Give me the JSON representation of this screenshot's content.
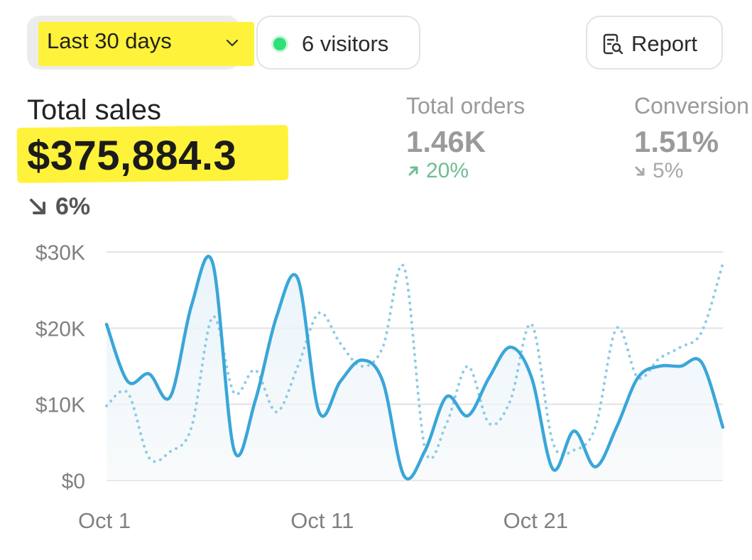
{
  "filters": {
    "range_label": "Last 30 days",
    "visitors_label": "6 visitors",
    "report_label": "Report"
  },
  "metrics": {
    "total_sales": {
      "label": "Total sales",
      "value": "$375,884.3",
      "change": "6%",
      "direction": "down"
    },
    "total_orders": {
      "label": "Total orders",
      "value": "1.46K",
      "change": "20%",
      "direction": "up"
    },
    "conversion": {
      "label": "Conversion",
      "value": "1.51%",
      "change": "5%",
      "direction": "down"
    }
  },
  "colors": {
    "primary_line": "#3aa6d8",
    "comparison_line": "#8ccbe6",
    "highlight": "#fff23a",
    "status_dot": "#2ee07a",
    "up_change": "#6fbc92"
  },
  "chart_data": {
    "type": "line",
    "ylim": [
      0,
      30000
    ],
    "yticks": [
      0,
      10000,
      20000,
      30000
    ],
    "ytick_labels": [
      "$0",
      "$10K",
      "$20K",
      "$30K"
    ],
    "xtick_labels": [
      "Oct 1",
      "Oct 11",
      "Oct 21"
    ],
    "xtick_positions": [
      1,
      11,
      21
    ],
    "x": [
      1,
      2,
      3,
      4,
      5,
      6,
      7,
      8,
      9,
      10,
      11,
      12,
      13,
      14,
      15,
      16,
      17,
      18,
      19,
      20,
      21,
      22,
      23,
      24,
      25,
      26,
      27,
      28,
      29,
      30
    ],
    "grid": true,
    "series": [
      {
        "style": "solid",
        "values": [
          20500,
          13000,
          14000,
          11000,
          23000,
          28500,
          4000,
          10500,
          21500,
          26500,
          9000,
          13000,
          15800,
          13000,
          600,
          4000,
          11000,
          8500,
          13500,
          17500,
          13500,
          1500,
          6500,
          1800,
          7000,
          13500,
          15000,
          15000,
          15500,
          7000
        ]
      },
      {
        "style": "dotted",
        "values": [
          9800,
          11500,
          3000,
          3800,
          7000,
          21500,
          11500,
          14500,
          9000,
          15000,
          22000,
          18000,
          15000,
          17500,
          28000,
          4000,
          7500,
          15000,
          7500,
          10500,
          20500,
          5000,
          4000,
          7000,
          20000,
          13500,
          16000,
          17500,
          19500,
          28500
        ]
      }
    ]
  }
}
